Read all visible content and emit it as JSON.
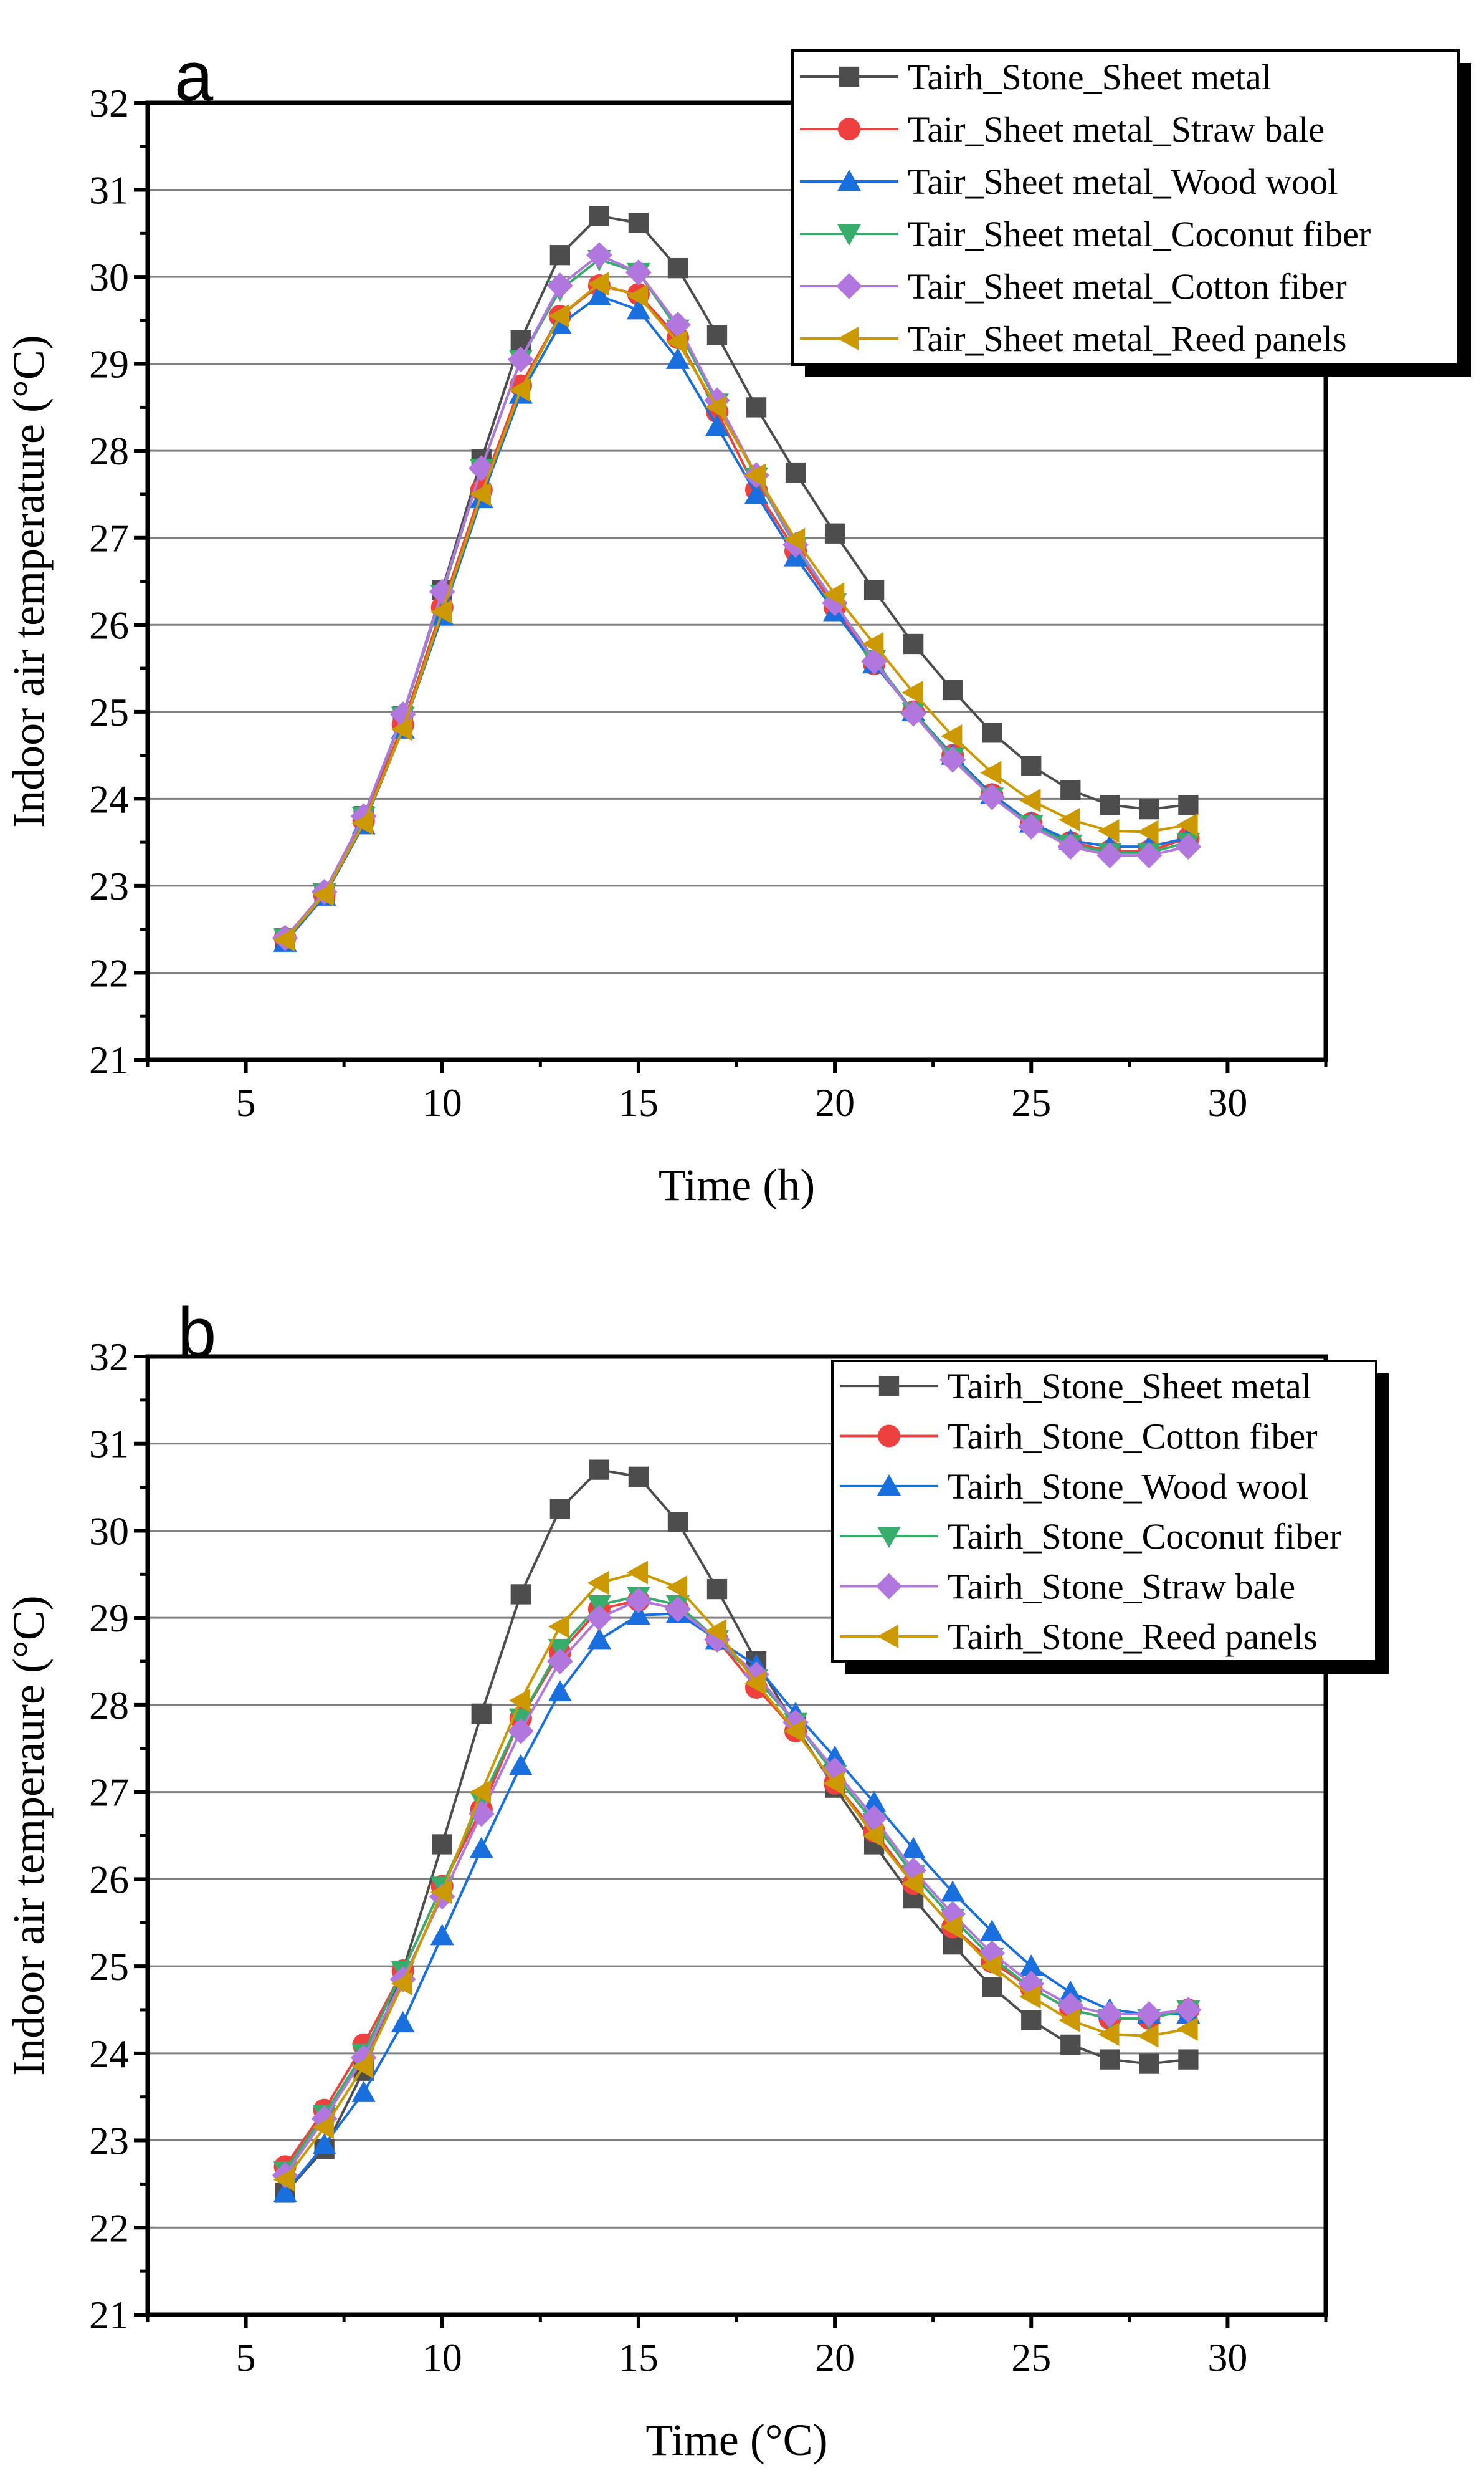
{
  "chart_data": [
    {
      "panel_label": "a",
      "type": "line",
      "xlabel": "Time (h)",
      "ylabel": "Indoor air temperature (°C)",
      "xlim": [
        2.5,
        32.5
      ],
      "ylim": [
        21,
        32
      ],
      "xticks": [
        5,
        10,
        15,
        20,
        25,
        30
      ],
      "yticks": [
        21,
        22,
        23,
        24,
        25,
        26,
        27,
        28,
        29,
        30,
        31,
        32
      ],
      "grid": true,
      "legend_position": "top-right",
      "x": [
        6,
        7,
        8,
        9,
        10,
        11,
        12,
        13,
        14,
        15,
        16,
        17,
        18,
        19,
        20,
        21,
        22,
        23,
        24,
        25,
        26,
        27,
        28,
        29
      ],
      "series": [
        {
          "name": "Tairh_Stone_Sheet metal",
          "color": "#4d4d4d",
          "marker": "square",
          "values": [
            22.4,
            22.9,
            23.8,
            24.95,
            26.4,
            27.9,
            29.27,
            30.25,
            30.7,
            30.62,
            30.1,
            29.33,
            28.5,
            27.75,
            27.05,
            26.4,
            25.78,
            25.25,
            24.76,
            24.38,
            24.1,
            23.93,
            23.88,
            23.93
          ]
        },
        {
          "name": "Tair_Sheet metal_Straw bale",
          "color": "#ef4040",
          "marker": "circle",
          "values": [
            22.4,
            22.9,
            23.75,
            24.85,
            26.2,
            27.55,
            28.75,
            29.55,
            29.9,
            29.8,
            29.3,
            28.45,
            27.55,
            26.85,
            26.2,
            25.55,
            25.0,
            24.5,
            24.05,
            23.72,
            23.5,
            23.4,
            23.4,
            23.55
          ]
        },
        {
          "name": "Tair_Sheet metal_Wood wool",
          "color": "#1a6fdf",
          "marker": "triangle-up",
          "values": [
            22.35,
            22.88,
            23.7,
            24.8,
            26.1,
            27.45,
            28.65,
            29.45,
            29.78,
            29.62,
            29.05,
            28.28,
            27.5,
            26.78,
            26.15,
            25.55,
            25.0,
            24.5,
            24.05,
            23.72,
            23.52,
            23.45,
            23.45,
            23.55
          ]
        },
        {
          "name": "Tair_Sheet metal_Coconut fiber",
          "color": "#37ad6b",
          "marker": "triangle-down",
          "values": [
            22.4,
            22.92,
            23.8,
            24.95,
            26.35,
            27.8,
            29.05,
            29.85,
            30.2,
            30.05,
            29.4,
            28.55,
            27.7,
            26.9,
            26.25,
            25.6,
            25.0,
            24.48,
            24.02,
            23.7,
            23.48,
            23.38,
            23.38,
            23.5
          ]
        },
        {
          "name": "Tair_Sheet metal_Cotton fiber",
          "color": "#b177de",
          "marker": "diamond",
          "values": [
            22.4,
            22.93,
            23.8,
            24.97,
            26.38,
            27.8,
            29.05,
            29.9,
            30.25,
            30.05,
            29.45,
            28.58,
            27.72,
            26.92,
            26.25,
            25.58,
            24.98,
            24.45,
            24.02,
            23.68,
            23.45,
            23.35,
            23.35,
            23.45
          ]
        },
        {
          "name": "Tair_Sheet metal_Reed panels",
          "color": "#cc9900",
          "marker": "triangle-left",
          "values": [
            22.38,
            22.9,
            23.72,
            24.8,
            26.15,
            27.5,
            28.7,
            29.55,
            29.92,
            29.78,
            29.25,
            28.5,
            27.72,
            26.98,
            26.35,
            25.78,
            25.22,
            24.72,
            24.3,
            23.98,
            23.76,
            23.63,
            23.62,
            23.7
          ]
        }
      ]
    },
    {
      "panel_label": "b",
      "type": "line",
      "xlabel": "Time (°C)",
      "ylabel": "Indoor air temperaure (°C)",
      "xlim": [
        2.5,
        32.5
      ],
      "ylim": [
        21,
        32
      ],
      "xticks": [
        5,
        10,
        15,
        20,
        25,
        30
      ],
      "yticks": [
        21,
        22,
        23,
        24,
        25,
        26,
        27,
        28,
        29,
        30,
        31,
        32
      ],
      "grid": true,
      "legend_position": "top-right",
      "x": [
        6,
        7,
        8,
        9,
        10,
        11,
        12,
        13,
        14,
        15,
        16,
        17,
        18,
        19,
        20,
        21,
        22,
        23,
        24,
        25,
        26,
        27,
        28,
        29
      ],
      "series": [
        {
          "name": "Tairh_Stone_Sheet metal",
          "color": "#4d4d4d",
          "marker": "square",
          "values": [
            22.4,
            22.9,
            23.8,
            24.95,
            26.4,
            27.9,
            29.27,
            30.25,
            30.7,
            30.62,
            30.1,
            29.33,
            28.5,
            27.75,
            27.05,
            26.4,
            25.78,
            25.25,
            24.76,
            24.38,
            24.1,
            23.93,
            23.88,
            23.93
          ]
        },
        {
          "name": "Tairh_Stone_Cotton fiber",
          "color": "#ef4040",
          "marker": "circle",
          "values": [
            22.7,
            23.35,
            24.1,
            24.95,
            25.92,
            26.8,
            27.85,
            28.6,
            29.1,
            29.2,
            29.1,
            28.75,
            28.2,
            27.7,
            27.1,
            26.55,
            25.95,
            25.45,
            25.05,
            24.75,
            24.5,
            24.4,
            24.4,
            24.5
          ]
        },
        {
          "name": "Tairh_Stone_Wood wool",
          "color": "#1a6fdf",
          "marker": "triangle-up",
          "values": [
            22.4,
            22.95,
            23.55,
            24.35,
            25.35,
            26.35,
            27.3,
            28.15,
            28.75,
            29.03,
            29.05,
            28.75,
            28.45,
            27.9,
            27.4,
            26.88,
            26.35,
            25.85,
            25.4,
            25.0,
            24.7,
            24.5,
            24.45,
            24.45
          ]
        },
        {
          "name": "Tairh_Stone_Coconut fiber",
          "color": "#37ad6b",
          "marker": "triangle-down",
          "values": [
            22.65,
            23.3,
            24.0,
            24.95,
            25.92,
            26.9,
            27.85,
            28.65,
            29.15,
            29.25,
            29.15,
            28.75,
            28.3,
            27.8,
            27.2,
            26.65,
            26.05,
            25.55,
            25.1,
            24.75,
            24.5,
            24.4,
            24.4,
            24.5
          ]
        },
        {
          "name": "Tairh_Stone_Straw bale",
          "color": "#b177de",
          "marker": "diamond",
          "values": [
            22.6,
            23.25,
            23.95,
            24.85,
            25.8,
            26.75,
            27.7,
            28.5,
            29.0,
            29.2,
            29.1,
            28.75,
            28.35,
            27.8,
            27.25,
            26.7,
            26.1,
            25.6,
            25.15,
            24.8,
            24.55,
            24.45,
            24.45,
            24.5
          ]
        },
        {
          "name": "Tairh_Stone_Reed panels",
          "color": "#cc9900",
          "marker": "triangle-left",
          "values": [
            22.55,
            23.15,
            23.85,
            24.8,
            25.85,
            27.0,
            28.05,
            28.9,
            29.4,
            29.52,
            29.35,
            28.85,
            28.25,
            27.7,
            27.1,
            26.5,
            25.95,
            25.45,
            25.0,
            24.65,
            24.38,
            24.22,
            24.2,
            24.28
          ]
        }
      ]
    }
  ]
}
